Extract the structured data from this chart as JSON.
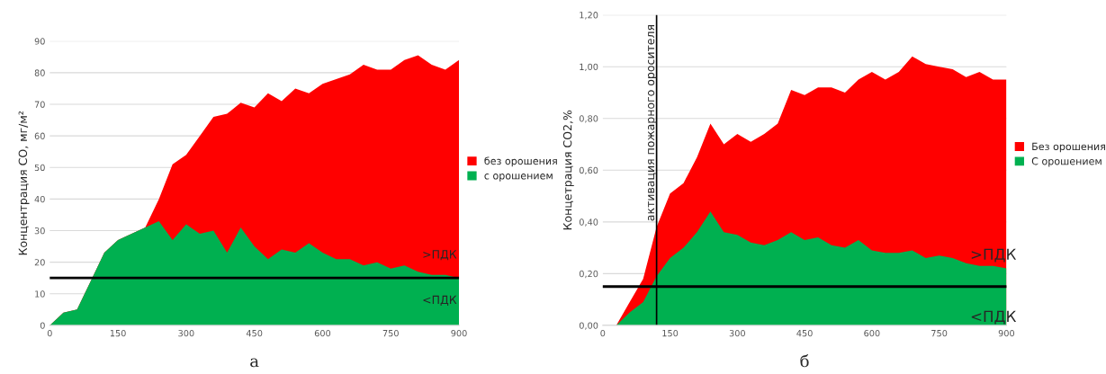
{
  "chart_data": [
    {
      "type": "area",
      "ylabel": "Концентрация CO, мг/м²",
      "xlim": [
        0,
        900
      ],
      "xticks": [
        0,
        150,
        300,
        450,
        600,
        750,
        900
      ],
      "ylim": [
        0,
        90
      ],
      "yticks": [
        0,
        10,
        20,
        30,
        40,
        50,
        60,
        70,
        80,
        90
      ],
      "x": [
        0,
        30,
        60,
        90,
        120,
        150,
        180,
        210,
        240,
        270,
        300,
        330,
        360,
        390,
        420,
        450,
        480,
        510,
        540,
        570,
        600,
        630,
        660,
        690,
        720,
        750,
        780,
        810,
        840,
        870,
        900
      ],
      "series": [
        {
          "name": "без орошения",
          "color": "#ff0000",
          "values": [
            0,
            4,
            5,
            14,
            23,
            27,
            29,
            31,
            40,
            51,
            54,
            60,
            66,
            67,
            70.5,
            69,
            73.5,
            71,
            75,
            73.5,
            76.5,
            78,
            79.5,
            82.5,
            81,
            81,
            84,
            85.5,
            82.5,
            81,
            84
          ]
        },
        {
          "name": "с орошением",
          "color": "#00b050",
          "values": [
            0,
            4,
            5,
            14,
            23,
            27,
            29,
            31,
            33,
            27,
            32,
            29,
            30,
            23,
            31,
            25,
            21,
            24,
            23,
            26,
            23,
            21,
            21,
            19,
            20,
            18,
            19,
            17,
            16,
            16,
            15
          ]
        }
      ],
      "ref_lines": [
        {
          "axis": "y",
          "value": 15,
          "color": "#000000"
        }
      ],
      "annotations": [
        ">ПДК",
        "<ПДК",
        "а"
      ],
      "grid": "y",
      "legend": "right"
    },
    {
      "type": "area",
      "ylabel": "Концетрация CO2,%",
      "xlim": [
        0,
        900
      ],
      "xticks": [
        0,
        150,
        300,
        450,
        600,
        750,
        900
      ],
      "ylim": [
        0,
        1.2
      ],
      "yticks": [
        {
          "value": 0,
          "label": "0,00"
        },
        {
          "value": 0.2,
          "label": "0,20"
        },
        {
          "value": 0.4,
          "label": "0,40"
        },
        {
          "value": 0.6,
          "label": "0,60"
        },
        {
          "value": 0.8,
          "label": "0,80"
        },
        {
          "value": 1.0,
          "label": "1,00"
        },
        {
          "value": 1.2,
          "label": "1,20"
        }
      ],
      "x": [
        30,
        60,
        90,
        120,
        150,
        180,
        210,
        240,
        270,
        300,
        330,
        360,
        390,
        420,
        450,
        480,
        510,
        540,
        570,
        600,
        630,
        660,
        690,
        720,
        750,
        780,
        810,
        840,
        870,
        900
      ],
      "series": [
        {
          "name": "Без орошения",
          "color": "#ff0000",
          "values": [
            0,
            0.09,
            0.18,
            0.38,
            0.51,
            0.55,
            0.65,
            0.78,
            0.7,
            0.74,
            0.71,
            0.74,
            0.78,
            0.91,
            0.89,
            0.92,
            0.92,
            0.9,
            0.95,
            0.98,
            0.95,
            0.98,
            1.04,
            1.01,
            1.0,
            0.99,
            0.96,
            0.98,
            0.95,
            0.95
          ]
        },
        {
          "name": "С орошением",
          "color": "#00b050",
          "values": [
            0,
            0.05,
            0.09,
            0.19,
            0.26,
            0.3,
            0.36,
            0.44,
            0.36,
            0.35,
            0.32,
            0.31,
            0.33,
            0.36,
            0.33,
            0.34,
            0.31,
            0.3,
            0.33,
            0.29,
            0.28,
            0.28,
            0.29,
            0.26,
            0.27,
            0.26,
            0.24,
            0.23,
            0.23,
            0.22
          ]
        }
      ],
      "ref_lines": [
        {
          "axis": "y",
          "value": 0.15,
          "color": "#000000"
        },
        {
          "axis": "x",
          "value": 120,
          "label": "активация пожарного оросителя",
          "color": "#000000"
        }
      ],
      "annotations": [
        ">ПДК",
        "<ПДК",
        "б"
      ],
      "grid": "y",
      "legend": "right"
    }
  ]
}
